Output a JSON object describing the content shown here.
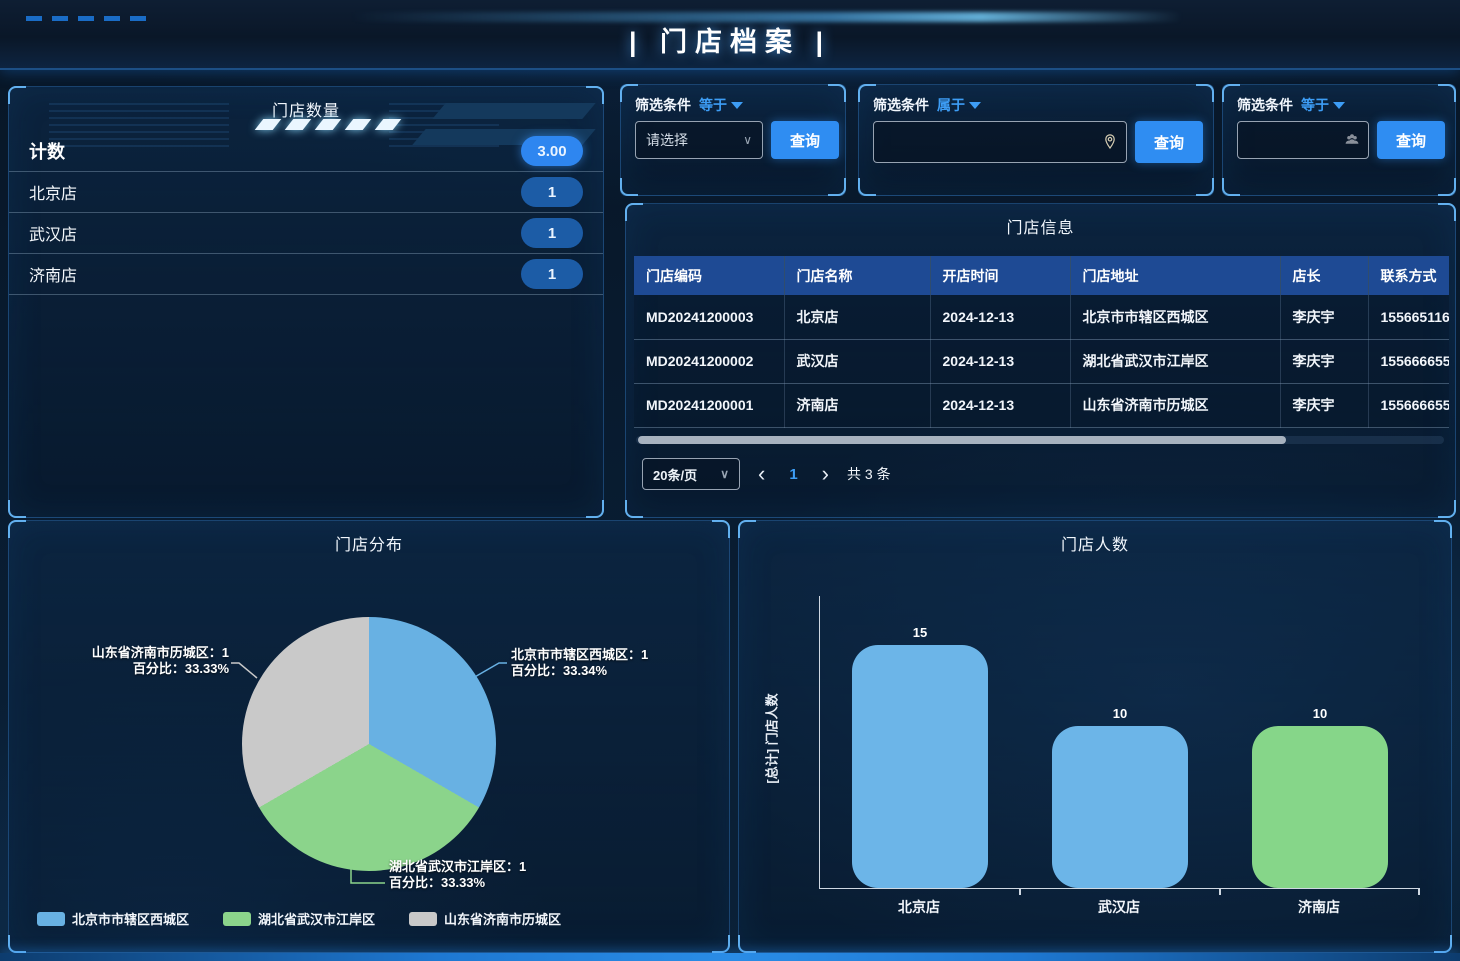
{
  "header": {
    "title": "| 门店档案 |"
  },
  "store_count_panel": {
    "title": "门店数量",
    "rows": [
      {
        "label": "计数",
        "value": "3.00"
      },
      {
        "label": "北京店",
        "value": "1"
      },
      {
        "label": "武汉店",
        "value": "1"
      },
      {
        "label": "济南店",
        "value": "1"
      }
    ]
  },
  "filter_panels": [
    {
      "label": "筛选条件",
      "operator": "等于",
      "placeholder": "请选择",
      "button": "查询",
      "icon": "chevron-down"
    },
    {
      "label": "筛选条件",
      "operator": "属于",
      "value": "",
      "button": "查询",
      "icon": "location-pin"
    },
    {
      "label": "筛选条件",
      "operator": "等于",
      "value": "",
      "button": "查询",
      "icon": "users"
    }
  ],
  "store_table": {
    "title": "门店信息",
    "columns": [
      "门店编码",
      "门店名称",
      "开店时间",
      "门店地址",
      "店长",
      "联系方式"
    ],
    "rows": [
      [
        "MD20241200003",
        "北京店",
        "2024-12-13",
        "北京市市辖区西城区",
        "李庆宇",
        "155665116"
      ],
      [
        "MD20241200002",
        "武汉店",
        "2024-12-13",
        "湖北省武汉市江岸区",
        "李庆宇",
        "155666655"
      ],
      [
        "MD20241200001",
        "济南店",
        "2024-12-13",
        "山东省济南市历城区",
        "李庆宇",
        "155666655"
      ]
    ],
    "pagination": {
      "page_size": "20条/页",
      "prev_icon": "‹",
      "current_page": "1",
      "next_icon": "›",
      "total_label": "共 3 条"
    }
  },
  "chart_data": [
    {
      "type": "pie",
      "title": "门店分布",
      "legend_position": "bottom-left",
      "start_angle": "top, clockwise",
      "slices": [
        {
          "label": "北京市市辖区西城区",
          "value": 1,
          "percent": 33.34,
          "color": "#68b1e3",
          "callout": [
            "北京市市辖区西城区：1",
            "百分比：33.34%"
          ]
        },
        {
          "label": "湖北省武汉市江岸区",
          "value": 1,
          "percent": 33.33,
          "color": "#8bd48b",
          "callout": [
            "湖北省武汉市江岸区：1",
            "百分比：33.33%"
          ]
        },
        {
          "label": "山东省济南市历城区",
          "value": 1,
          "percent": 33.33,
          "color": "#c9c9c9",
          "callout": [
            "山东省济南市历城区：1",
            "百分比：33.33%"
          ]
        }
      ]
    },
    {
      "type": "bar",
      "title": "门店人数",
      "categories": [
        "北京店",
        "武汉店",
        "济南店"
      ],
      "values": [
        15,
        10,
        10
      ],
      "colors": [
        "#6cb5e8",
        "#6cb5e8",
        "#86d689"
      ],
      "ylabel": "[总计] 门店人数",
      "ylim": [
        0,
        18
      ],
      "grid": false,
      "value_labels": true
    }
  ],
  "colors": {
    "accent": "#3d9df5",
    "query_button": "#2f8df2",
    "table_header": "#1e4a94",
    "pill_bright": "#2e86f0",
    "pill_dark": "#1c5ca6"
  }
}
